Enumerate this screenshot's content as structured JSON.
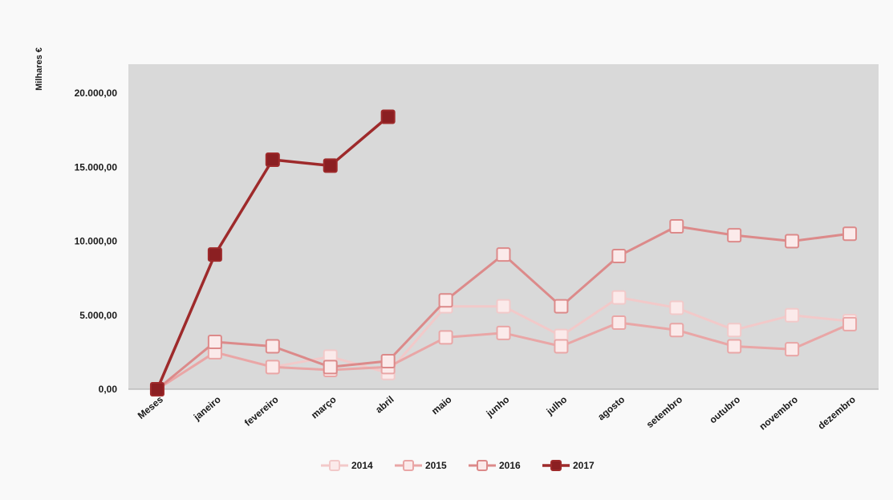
{
  "chart_data": {
    "type": "line",
    "ylabel": "Milhares €",
    "xlabel": "",
    "ylim": [
      0,
      20000
    ],
    "yticks": [
      0,
      5000,
      10000,
      15000,
      20000
    ],
    "ytick_labels": [
      "0,00",
      "5.000,00",
      "10.000,00",
      "15.000,00",
      "20.000,00"
    ],
    "categories": [
      "Meses",
      "janeiro",
      "fevereiro",
      "março",
      "abril",
      "maio",
      "junho",
      "julho",
      "agosto",
      "setembro",
      "outubro",
      "novembro",
      "dezembro"
    ],
    "grid": false,
    "legend_position": "bottom",
    "series": [
      {
        "name": "2014",
        "color": "#f2c9c9",
        "values": [
          0,
          2500,
          1500,
          2200,
          1100,
          5600,
          5600,
          3600,
          6200,
          5500,
          4000,
          5000,
          4600
        ]
      },
      {
        "name": "2015",
        "color": "#e9a6a6",
        "values": [
          0,
          2500,
          1500,
          1300,
          1500,
          3500,
          3800,
          2900,
          4500,
          4000,
          2900,
          2700,
          4400
        ]
      },
      {
        "name": "2016",
        "color": "#dc8a8a",
        "values": [
          0,
          3200,
          2900,
          1500,
          1900,
          6000,
          9100,
          5600,
          9000,
          11000,
          10400,
          10000,
          10500
        ]
      },
      {
        "name": "2017",
        "color": "#9e2a2b",
        "values": [
          0,
          9100,
          15500,
          15100,
          18400,
          null,
          null,
          null,
          null,
          null,
          null,
          null,
          null
        ]
      }
    ]
  }
}
